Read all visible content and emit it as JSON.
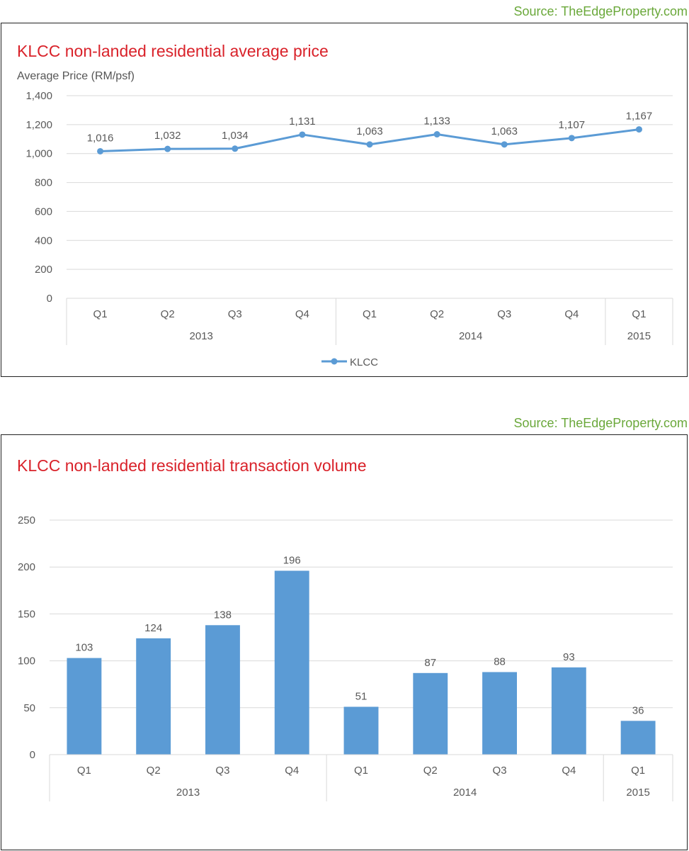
{
  "charts": [
    {
      "source": "Source: TheEdgeProperty.com",
      "title": "KLCC non-landed residential average price",
      "ylabel": "Average Price (RM/psf)"
    },
    {
      "source": "Source: TheEdgeProperty.com",
      "title": "KLCC non-landed residential transaction volume"
    }
  ],
  "colors": {
    "series": "#5b9bd5",
    "title": "#d9222a",
    "source": "#6aa83a",
    "grid": "#d9d9d9",
    "text": "#595959"
  },
  "chart_data": [
    {
      "type": "line",
      "title": "KLCC non-landed residential average price",
      "ylabel": "Average Price (RM/psf)",
      "xlabel": "",
      "categories": [
        "Q1",
        "Q2",
        "Q3",
        "Q4",
        "Q1",
        "Q2",
        "Q3",
        "Q4",
        "Q1"
      ],
      "groups": [
        {
          "label": "2013",
          "count": 4
        },
        {
          "label": "2014",
          "count": 4
        },
        {
          "label": "2015",
          "count": 1
        }
      ],
      "series": [
        {
          "name": "KLCC",
          "values": [
            1016,
            1032,
            1034,
            1131,
            1063,
            1133,
            1063,
            1107,
            1167
          ]
        }
      ],
      "ylim": [
        0,
        1400
      ],
      "yticks": [
        0,
        200,
        400,
        600,
        800,
        1000,
        1200,
        1400
      ],
      "ytick_labels": [
        "0",
        "200",
        "400",
        "600",
        "800",
        "1,000",
        "1,200",
        "1,400"
      ],
      "data_labels": [
        "1,016",
        "1,032",
        "1,034",
        "1,131",
        "1,063",
        "1,133",
        "1,063",
        "1,107",
        "1,167"
      ],
      "grid": true,
      "legend": "bottom"
    },
    {
      "type": "bar",
      "title": "KLCC non-landed residential transaction volume",
      "xlabel": "",
      "ylabel": "",
      "categories": [
        "Q1",
        "Q2",
        "Q3",
        "Q4",
        "Q1",
        "Q2",
        "Q3",
        "Q4",
        "Q1"
      ],
      "groups": [
        {
          "label": "2013",
          "count": 4
        },
        {
          "label": "2014",
          "count": 4
        },
        {
          "label": "2015",
          "count": 1
        }
      ],
      "values": [
        103,
        124,
        138,
        196,
        51,
        87,
        88,
        93,
        36
      ],
      "ylim": [
        0,
        250
      ],
      "yticks": [
        0,
        50,
        100,
        150,
        200,
        250
      ],
      "ytick_labels": [
        "0",
        "50",
        "100",
        "150",
        "200",
        "250"
      ],
      "data_labels": [
        "103",
        "124",
        "138",
        "196",
        "51",
        "87",
        "88",
        "93",
        "36"
      ],
      "grid": true,
      "legend": "none"
    }
  ]
}
